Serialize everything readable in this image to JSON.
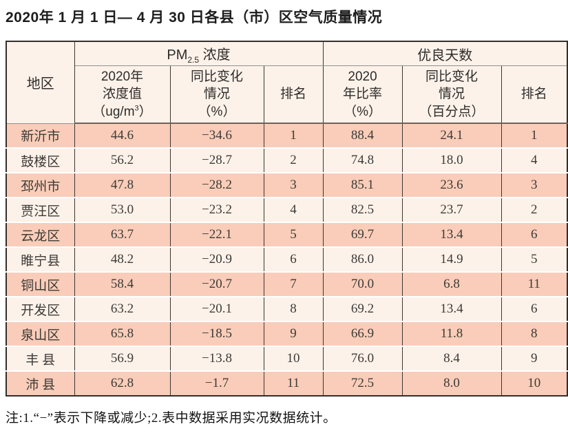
{
  "page": {
    "title": "2020年 1 月 1 日— 4 月 30 日各县（市）区空气质量情况",
    "footnote": "注:1.“−”表示下降或减少;2.表中数据采用实况数据统计。"
  },
  "table": {
    "header": {
      "region": "地区",
      "pm25_group": {
        "prefix": "PM",
        "sub": "2.5",
        "suffix": " 浓度"
      },
      "good_days_group": "优良天数",
      "pm25_value": {
        "lines": "2020年\n浓度值",
        "unit_pre": "（ug/m",
        "unit_sup": "3",
        "unit_post": "）"
      },
      "pm25_change": "同比变化\n情况\n（%）",
      "pm25_rank": "排名",
      "days_rate": "2020\n年比率\n（%）",
      "days_change": "同比变化\n情况\n（百分点）",
      "days_rank": "排名"
    },
    "rows": [
      {
        "region": "新沂市",
        "pm25_value": "44.6",
        "pm25_change": "−34.6",
        "pm25_rank": "1",
        "days_rate": "88.4",
        "days_change": "24.1",
        "days_rank": "1"
      },
      {
        "region": "鼓楼区",
        "pm25_value": "56.2",
        "pm25_change": "−28.7",
        "pm25_rank": "2",
        "days_rate": "74.8",
        "days_change": "18.0",
        "days_rank": "4"
      },
      {
        "region": "邳州市",
        "pm25_value": "47.8",
        "pm25_change": "−28.2",
        "pm25_rank": "3",
        "days_rate": "85.1",
        "days_change": "23.6",
        "days_rank": "3"
      },
      {
        "region": "贾汪区",
        "pm25_value": "53.0",
        "pm25_change": "−23.2",
        "pm25_rank": "4",
        "days_rate": "82.5",
        "days_change": "23.7",
        "days_rank": "2"
      },
      {
        "region": "云龙区",
        "pm25_value": "63.7",
        "pm25_change": "−22.1",
        "pm25_rank": "5",
        "days_rate": "69.7",
        "days_change": "13.4",
        "days_rank": "6"
      },
      {
        "region": "睢宁县",
        "pm25_value": "48.2",
        "pm25_change": "−20.9",
        "pm25_rank": "6",
        "days_rate": "86.0",
        "days_change": "14.9",
        "days_rank": "5"
      },
      {
        "region": "铜山区",
        "pm25_value": "58.4",
        "pm25_change": "−20.7",
        "pm25_rank": "7",
        "days_rate": "70.0",
        "days_change": "6.8",
        "days_rank": "11"
      },
      {
        "region": "开发区",
        "pm25_value": "63.2",
        "pm25_change": "−20.1",
        "pm25_rank": "8",
        "days_rate": "69.2",
        "days_change": "13.4",
        "days_rank": "6"
      },
      {
        "region": "泉山区",
        "pm25_value": "65.8",
        "pm25_change": "−18.5",
        "pm25_rank": "9",
        "days_rate": "66.9",
        "days_change": "11.8",
        "days_rank": "8"
      },
      {
        "region": "丰 县",
        "pm25_value": "56.9",
        "pm25_change": "−13.8",
        "pm25_rank": "10",
        "days_rate": "76.0",
        "days_change": "8.4",
        "days_rank": "9"
      },
      {
        "region": "沛 县",
        "pm25_value": "62.8",
        "pm25_change": "−1.7",
        "pm25_rank": "11",
        "days_rate": "72.5",
        "days_change": "8.0",
        "days_rank": "10"
      }
    ]
  },
  "colors": {
    "stripe_row": "#f9cdb9",
    "light_row": "#fdf2ea",
    "border_dark": "#3a3531",
    "header_underline": "#90908a",
    "header_bottom_line": "#6e6156"
  }
}
